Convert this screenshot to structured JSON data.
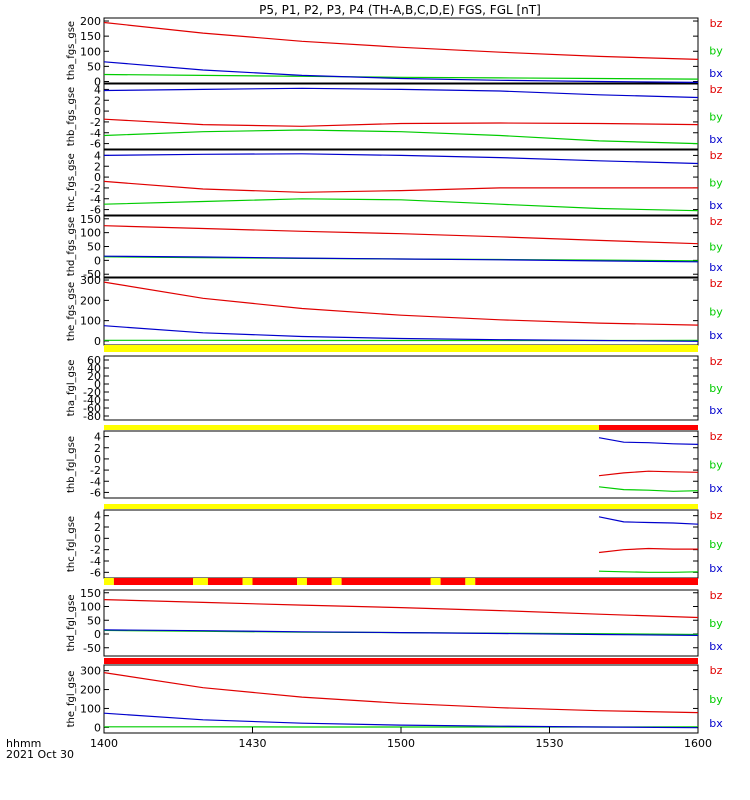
{
  "title": "P5, P1, P2, P3, P4 (TH-A,B,C,D,E) FGS, FGL [nT]",
  "x_axis": {
    "label_line1": "hhmm",
    "label_line2": "2021 Oct 30",
    "tick_labels": [
      "1400",
      "1430",
      "1500",
      "1530",
      "1600"
    ],
    "tick_minutes": [
      0,
      30,
      60,
      90,
      120
    ],
    "range_minutes": [
      0,
      120
    ]
  },
  "colors": {
    "bz": "#e00000",
    "by": "#00cc00",
    "bx": "#0000cc",
    "flag_yellow": "#ffff00",
    "flag_red": "#ff0000"
  },
  "chart_data": [
    {
      "type": "line",
      "ylabel": "tha_fgs_gse",
      "ylim": [
        -5,
        210
      ],
      "yticks": [
        0,
        50,
        100,
        150,
        200
      ],
      "legend": [
        "bz",
        "by",
        "bx"
      ],
      "series": [
        {
          "name": "bz",
          "x": [
            0,
            20,
            40,
            60,
            80,
            100,
            120
          ],
          "values": [
            195,
            160,
            133,
            113,
            97,
            83,
            73
          ]
        },
        {
          "name": "by",
          "x": [
            0,
            20,
            40,
            60,
            80,
            100,
            120
          ],
          "values": [
            23,
            20,
            17,
            14,
            12,
            10,
            8
          ]
        },
        {
          "name": "bx",
          "x": [
            0,
            20,
            40,
            60,
            80,
            100,
            120
          ],
          "values": [
            65,
            38,
            20,
            10,
            4,
            0,
            -3
          ]
        }
      ]
    },
    {
      "type": "line",
      "ylabel": "thb_fgs_gse",
      "ylim": [
        -7,
        5
      ],
      "yticks": [
        -6,
        -4,
        -2,
        0,
        2,
        4
      ],
      "legend": [
        "bz",
        "by",
        "bx"
      ],
      "series": [
        {
          "name": "bz",
          "x": [
            0,
            20,
            40,
            60,
            80,
            100,
            120
          ],
          "values": [
            -1.5,
            -2.5,
            -2.8,
            -2.3,
            -2.2,
            -2.3,
            -2.5
          ]
        },
        {
          "name": "by",
          "x": [
            0,
            20,
            40,
            60,
            80,
            100,
            120
          ],
          "values": [
            -4.5,
            -3.8,
            -3.5,
            -3.8,
            -4.5,
            -5.5,
            -6.0
          ]
        },
        {
          "name": "bx",
          "x": [
            0,
            20,
            40,
            60,
            80,
            100,
            120
          ],
          "values": [
            3.8,
            4.0,
            4.2,
            4.0,
            3.7,
            3.0,
            2.5
          ]
        }
      ]
    },
    {
      "type": "line",
      "ylabel": "thc_fgs_gse",
      "ylim": [
        -7,
        5
      ],
      "yticks": [
        -6,
        -4,
        -2,
        0,
        2,
        4
      ],
      "legend": [
        "bz",
        "by",
        "bx"
      ],
      "series": [
        {
          "name": "bz",
          "x": [
            0,
            20,
            40,
            60,
            80,
            100,
            120
          ],
          "values": [
            -0.8,
            -2.2,
            -2.8,
            -2.5,
            -2.0,
            -2.0,
            -2.0
          ]
        },
        {
          "name": "by",
          "x": [
            0,
            20,
            40,
            60,
            80,
            100,
            120
          ],
          "values": [
            -5.0,
            -4.5,
            -4.0,
            -4.2,
            -5.0,
            -5.8,
            -6.2
          ]
        },
        {
          "name": "bx",
          "x": [
            0,
            20,
            40,
            60,
            80,
            100,
            120
          ],
          "values": [
            4.0,
            4.2,
            4.3,
            4.0,
            3.6,
            3.0,
            2.5
          ]
        }
      ]
    },
    {
      "type": "line",
      "ylabel": "thd_fgs_gse",
      "ylim": [
        -60,
        160
      ],
      "yticks": [
        -50,
        0,
        50,
        100,
        150
      ],
      "legend": [
        "bz",
        "by",
        "bx"
      ],
      "series": [
        {
          "name": "bz",
          "x": [
            0,
            20,
            40,
            60,
            80,
            100,
            120
          ],
          "values": [
            125,
            115,
            105,
            96,
            85,
            72,
            60
          ]
        },
        {
          "name": "by",
          "x": [
            0,
            20,
            40,
            60,
            80,
            100,
            120
          ],
          "values": [
            13,
            10,
            7,
            5,
            3,
            1,
            -2
          ]
        },
        {
          "name": "bx",
          "x": [
            0,
            20,
            40,
            60,
            80,
            100,
            120
          ],
          "values": [
            15,
            12,
            8,
            5,
            2,
            -2,
            -5
          ]
        }
      ]
    },
    {
      "type": "line",
      "ylabel": "the_fgs_gse",
      "ylim": [
        -20,
        310
      ],
      "yticks": [
        0,
        100,
        200,
        300
      ],
      "legend": [
        "bz",
        "by",
        "bx"
      ],
      "series": [
        {
          "name": "bz",
          "x": [
            0,
            20,
            40,
            60,
            80,
            100,
            120
          ],
          "values": [
            290,
            210,
            160,
            127,
            104,
            88,
            78
          ]
        },
        {
          "name": "by",
          "x": [
            0,
            20,
            40,
            60,
            80,
            100,
            120
          ],
          "values": [
            3,
            3,
            2,
            2,
            2,
            2,
            3
          ]
        },
        {
          "name": "bx",
          "x": [
            0,
            20,
            40,
            60,
            80,
            100,
            120
          ],
          "values": [
            75,
            40,
            22,
            12,
            6,
            2,
            -2
          ]
        }
      ]
    },
    {
      "type": "line",
      "ylabel": "tha_fgl_gse",
      "ylim": [
        -90,
        70
      ],
      "yticks": [
        -80,
        -60,
        -40,
        -20,
        0,
        20,
        40,
        60
      ],
      "legend": [
        "bz",
        "by",
        "bx"
      ],
      "series": []
    },
    {
      "type": "line",
      "ylabel": "thb_fgl_gse",
      "ylim": [
        -7,
        5
      ],
      "yticks": [
        -6,
        -4,
        -2,
        0,
        2,
        4
      ],
      "legend": [
        "bz",
        "by",
        "bx"
      ],
      "series": [
        {
          "name": "bz",
          "x": [
            100,
            105,
            110,
            115,
            120
          ],
          "values": [
            -3.0,
            -2.5,
            -2.2,
            -2.3,
            -2.4
          ]
        },
        {
          "name": "by",
          "x": [
            100,
            105,
            110,
            115,
            120
          ],
          "values": [
            -5.0,
            -5.5,
            -5.6,
            -5.8,
            -5.7
          ]
        },
        {
          "name": "bx",
          "x": [
            100,
            105,
            110,
            115,
            120
          ],
          "values": [
            3.8,
            3.0,
            2.9,
            2.7,
            2.6
          ]
        }
      ]
    },
    {
      "type": "line",
      "ylabel": "thc_fgl_gse",
      "ylim": [
        -7,
        5
      ],
      "yticks": [
        -6,
        -4,
        -2,
        0,
        2,
        4
      ],
      "legend": [
        "bz",
        "by",
        "bx"
      ],
      "series": [
        {
          "name": "bz",
          "x": [
            100,
            105,
            110,
            115,
            120
          ],
          "values": [
            -2.5,
            -2.0,
            -1.8,
            -1.9,
            -1.9
          ]
        },
        {
          "name": "by",
          "x": [
            100,
            105,
            110,
            115,
            120
          ],
          "values": [
            -5.8,
            -5.9,
            -6.0,
            -6.0,
            -5.9
          ]
        },
        {
          "name": "bx",
          "x": [
            100,
            105,
            110,
            115,
            120
          ],
          "values": [
            3.8,
            2.9,
            2.8,
            2.7,
            2.5
          ]
        }
      ]
    },
    {
      "type": "line",
      "ylabel": "thd_fgl_gse",
      "ylim": [
        -80,
        160
      ],
      "yticks": [
        -50,
        0,
        50,
        100,
        150
      ],
      "legend": [
        "bz",
        "by",
        "bx"
      ],
      "series": [
        {
          "name": "bz",
          "x": [
            0,
            20,
            40,
            60,
            80,
            100,
            120
          ],
          "values": [
            125,
            115,
            105,
            96,
            85,
            72,
            60
          ]
        },
        {
          "name": "by",
          "x": [
            0,
            20,
            40,
            60,
            80,
            100,
            120
          ],
          "values": [
            13,
            10,
            7,
            5,
            3,
            1,
            -2
          ]
        },
        {
          "name": "bx",
          "x": [
            0,
            20,
            40,
            60,
            80,
            100,
            120
          ],
          "values": [
            15,
            12,
            8,
            5,
            2,
            -2,
            -5
          ]
        }
      ]
    },
    {
      "type": "line",
      "ylabel": "the_fgl_gse",
      "ylim": [
        -30,
        330
      ],
      "yticks": [
        0,
        100,
        200,
        300
      ],
      "legend": [
        "bz",
        "by",
        "bx"
      ],
      "series": [
        {
          "name": "bz",
          "x": [
            0,
            20,
            40,
            60,
            80,
            100,
            120
          ],
          "values": [
            290,
            210,
            160,
            127,
            104,
            88,
            78
          ]
        },
        {
          "name": "by",
          "x": [
            0,
            20,
            40,
            60,
            80,
            100,
            120
          ],
          "values": [
            3,
            3,
            2,
            2,
            2,
            2,
            3
          ]
        },
        {
          "name": "bx",
          "x": [
            0,
            20,
            40,
            60,
            80,
            100,
            120
          ],
          "values": [
            75,
            40,
            22,
            12,
            6,
            2,
            -2
          ]
        }
      ]
    }
  ],
  "status_bars": [
    {
      "segments": [
        {
          "start": 0,
          "end": 120,
          "color": "yellow"
        }
      ]
    },
    {
      "segments": [
        {
          "start": 0,
          "end": 100,
          "color": "yellow"
        },
        {
          "start": 100,
          "end": 120,
          "color": "red"
        }
      ]
    },
    {
      "segments": [
        {
          "start": 0,
          "end": 120,
          "color": "yellow"
        }
      ]
    },
    {
      "segments": [
        {
          "start": 0,
          "end": 2,
          "color": "yellow"
        },
        {
          "start": 2,
          "end": 18,
          "color": "red"
        },
        {
          "start": 18,
          "end": 21,
          "color": "yellow"
        },
        {
          "start": 21,
          "end": 28,
          "color": "red"
        },
        {
          "start": 28,
          "end": 30,
          "color": "yellow"
        },
        {
          "start": 30,
          "end": 39,
          "color": "red"
        },
        {
          "start": 39,
          "end": 41,
          "color": "yellow"
        },
        {
          "start": 41,
          "end": 46,
          "color": "red"
        },
        {
          "start": 46,
          "end": 48,
          "color": "yellow"
        },
        {
          "start": 48,
          "end": 66,
          "color": "red"
        },
        {
          "start": 66,
          "end": 68,
          "color": "yellow"
        },
        {
          "start": 68,
          "end": 73,
          "color": "red"
        },
        {
          "start": 73,
          "end": 75,
          "color": "yellow"
        },
        {
          "start": 75,
          "end": 120,
          "color": "red"
        }
      ]
    },
    {
      "segments": [
        {
          "start": 0,
          "end": 120,
          "color": "red"
        }
      ]
    }
  ]
}
